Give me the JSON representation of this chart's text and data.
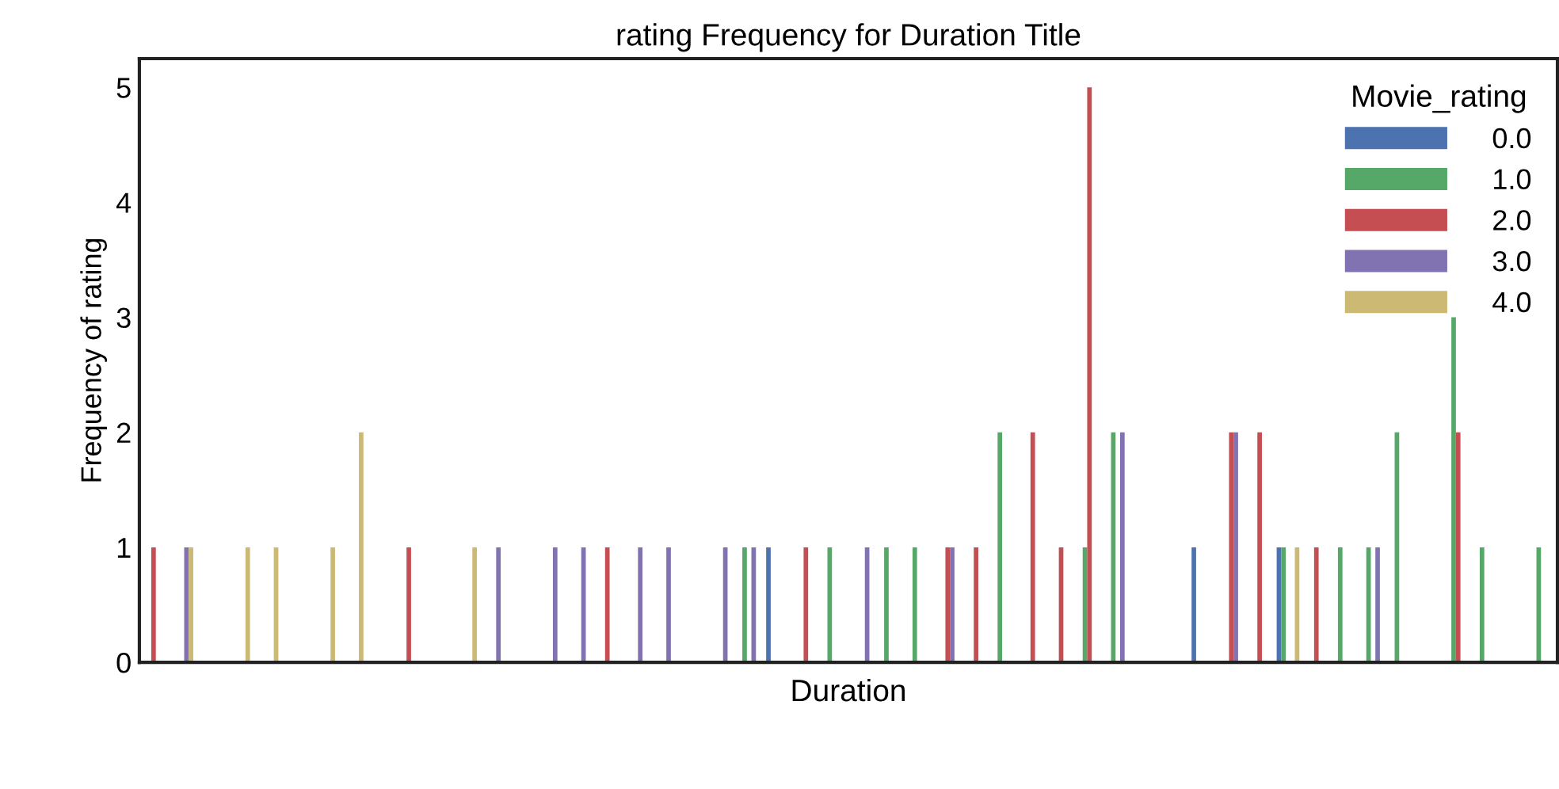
{
  "chart_data": {
    "type": "bar",
    "title": "rating Frequency for Duration Title",
    "xlabel": "Duration",
    "ylabel": "Frequency of rating",
    "legend_title": "Movie_rating",
    "legend": "top right",
    "grid": false,
    "categories": [
      null,
      null,
      null,
      null,
      null,
      null,
      null,
      null,
      null,
      null,
      null,
      null,
      null,
      null,
      null,
      null,
      null,
      null,
      null,
      null,
      null,
      null,
      null,
      null,
      null,
      null,
      null,
      null,
      null,
      null,
      null,
      null,
      null,
      null,
      null,
      null,
      null,
      null,
      null,
      null,
      null,
      null,
      null,
      null,
      null,
      null,
      null,
      null,
      null,
      null
    ],
    "ylim": [
      0,
      5.25
    ],
    "yticks": [
      0,
      1,
      2,
      3,
      4,
      5
    ],
    "series": [
      {
        "name": "0.0",
        "color": "#4c72b0",
        "values": [
          null,
          null,
          null,
          null,
          null,
          null,
          null,
          null,
          null,
          null,
          null,
          null,
          null,
          null,
          null,
          null,
          null,
          null,
          null,
          null,
          null,
          null,
          1,
          null,
          null,
          null,
          null,
          null,
          null,
          null,
          null,
          null,
          null,
          null,
          null,
          null,
          null,
          1,
          null,
          null,
          1,
          null,
          null,
          null,
          null,
          null,
          null,
          null,
          null,
          null
        ]
      },
      {
        "name": "1.0",
        "color": "#55a868",
        "values": [
          null,
          null,
          null,
          null,
          null,
          null,
          null,
          null,
          null,
          null,
          null,
          null,
          null,
          null,
          null,
          null,
          null,
          null,
          null,
          null,
          null,
          1,
          null,
          null,
          1,
          null,
          1,
          1,
          null,
          null,
          2,
          null,
          null,
          1,
          2,
          null,
          null,
          null,
          null,
          null,
          1,
          null,
          1,
          1,
          2,
          null,
          3,
          1,
          null,
          1
        ]
      },
      {
        "name": "2.0",
        "color": "#c44e52",
        "values": [
          1,
          null,
          null,
          null,
          null,
          null,
          null,
          null,
          null,
          1,
          null,
          null,
          null,
          null,
          null,
          null,
          1,
          null,
          null,
          null,
          null,
          null,
          null,
          1,
          null,
          null,
          null,
          null,
          1,
          1,
          null,
          2,
          1,
          5,
          null,
          null,
          null,
          null,
          2,
          2,
          null,
          1,
          null,
          null,
          null,
          null,
          2,
          null,
          null,
          null
        ]
      },
      {
        "name": "3.0",
        "color": "#8172b2",
        "values": [
          null,
          1,
          null,
          null,
          null,
          null,
          null,
          null,
          null,
          null,
          null,
          null,
          1,
          null,
          1,
          1,
          null,
          1,
          1,
          null,
          1,
          1,
          null,
          null,
          null,
          1,
          null,
          null,
          1,
          null,
          null,
          null,
          null,
          null,
          2,
          null,
          null,
          null,
          2,
          null,
          null,
          null,
          null,
          1,
          null,
          null,
          null,
          null,
          null,
          null
        ]
      },
      {
        "name": "4.0",
        "color": "#ccb974",
        "values": [
          null,
          1,
          null,
          1,
          1,
          null,
          1,
          2,
          null,
          null,
          null,
          1,
          null,
          null,
          null,
          null,
          null,
          null,
          null,
          null,
          null,
          null,
          null,
          null,
          null,
          null,
          null,
          null,
          null,
          null,
          null,
          null,
          null,
          null,
          null,
          null,
          null,
          null,
          null,
          null,
          1,
          null,
          null,
          null,
          null,
          null,
          null,
          null,
          null,
          null
        ]
      }
    ]
  }
}
